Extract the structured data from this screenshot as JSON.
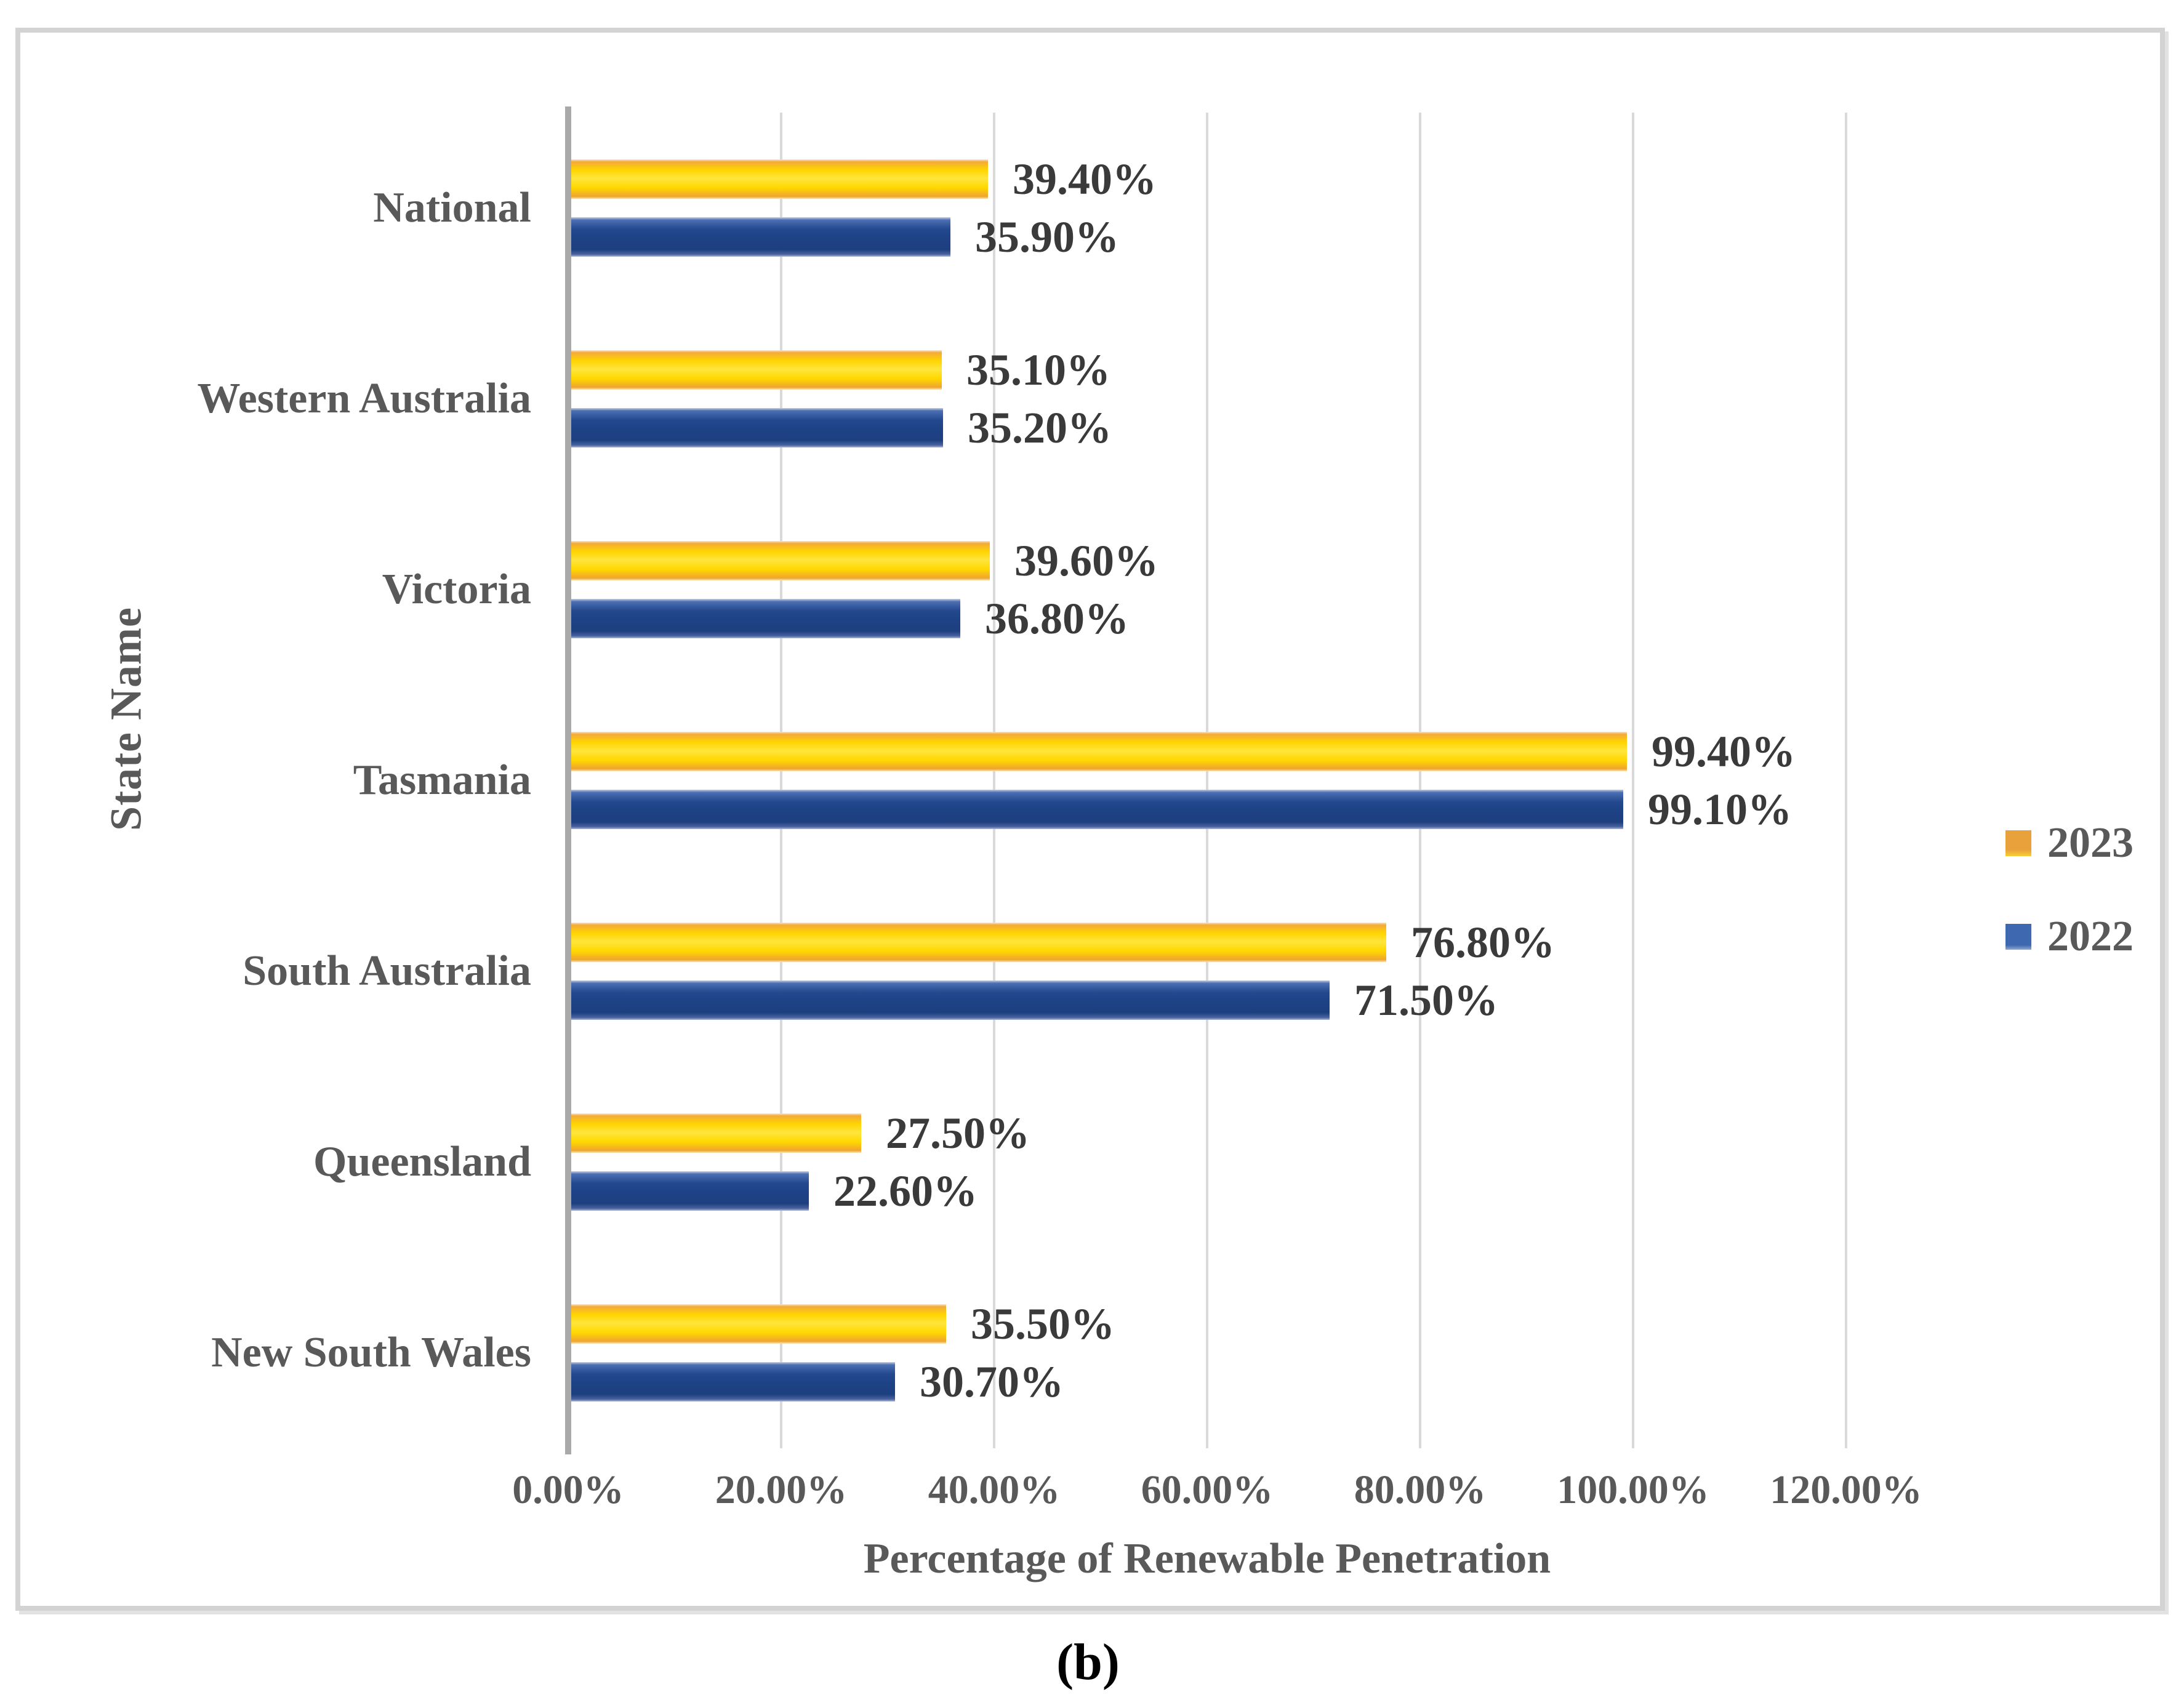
{
  "figure": {
    "caption": "(b)",
    "x_axis": {
      "title": "Percentage of Renewable Penetration",
      "ticks": [
        "0.00%",
        "20.00%",
        "40.00%",
        "60.00%",
        "80.00%",
        "100.00%",
        "120.00%"
      ],
      "min": 0,
      "max": 120,
      "gridlines": true
    },
    "y_axis": {
      "title": "State Name"
    },
    "legend": {
      "position": "right",
      "items": [
        {
          "label": "2023",
          "color": "#E9A23B"
        },
        {
          "label": "2022",
          "color": "#3E68B0"
        }
      ]
    }
  },
  "chart_data": {
    "type": "bar",
    "orientation": "horizontal",
    "title": "",
    "xlabel": "Percentage of Renewable Penetration",
    "ylabel": "State Name",
    "xlim": [
      0,
      120
    ],
    "categories": [
      "National",
      "Western Australia",
      "Victoria",
      "Tasmania",
      "South Australia",
      "Queensland",
      "New South Wales"
    ],
    "series": [
      {
        "name": "2023",
        "color": "#FFD400",
        "accent_color": "#E9A23B",
        "values": [
          39.4,
          35.1,
          39.6,
          99.4,
          76.8,
          27.5,
          35.5
        ],
        "labels": [
          "39.40%",
          "35.10%",
          "39.60%",
          "99.40%",
          "76.80%",
          "27.50%",
          "35.50%"
        ]
      },
      {
        "name": "2022",
        "color": "#1E4286",
        "accent_color": "#3E68B0",
        "values": [
          35.9,
          35.2,
          36.8,
          99.1,
          71.5,
          22.6,
          30.7
        ],
        "labels": [
          "35.90%",
          "35.20%",
          "36.80%",
          "99.10%",
          "71.50%",
          "22.60%",
          "30.70%"
        ]
      }
    ]
  }
}
